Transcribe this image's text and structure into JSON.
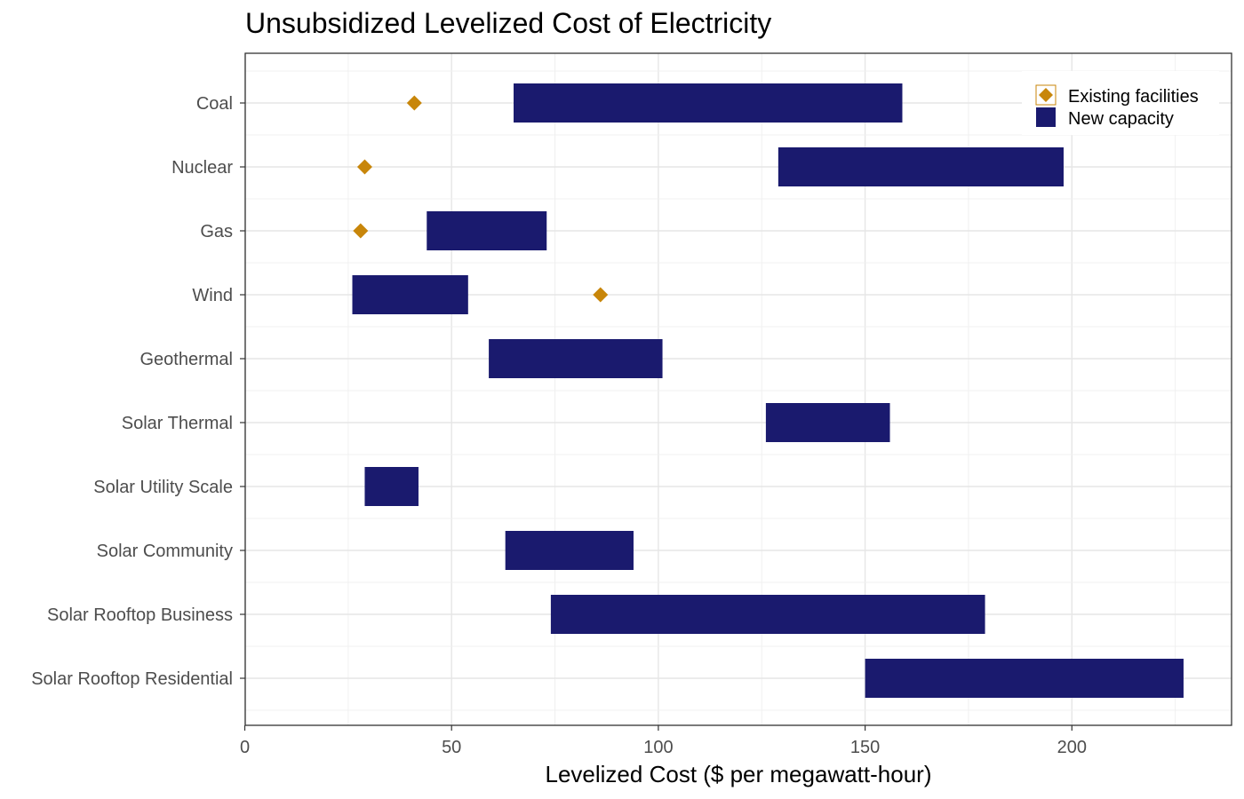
{
  "chart_data": {
    "type": "bar",
    "orientation": "horizontal-range",
    "title": "Unsubsidized Levelized Cost of Electricity",
    "xlabel": "Levelized Cost ($ per megawatt-hour)",
    "ylabel": "",
    "xlim": [
      0,
      238
    ],
    "x_ticks": [
      0,
      50,
      100,
      150,
      200
    ],
    "grid": true,
    "legend_position": "top-right",
    "categories": [
      "Coal",
      "Nuclear",
      "Gas",
      "Wind",
      "Geothermal",
      "Solar Thermal",
      "Solar Utility Scale",
      "Solar Community",
      "Solar Rooftop Business",
      "Solar Rooftop Residential"
    ],
    "series": [
      {
        "name": "New capacity",
        "marker": "bar",
        "color": "#1a1a6e",
        "ranges": [
          [
            65,
            159
          ],
          [
            129,
            198
          ],
          [
            44,
            73
          ],
          [
            26,
            54
          ],
          [
            59,
            101
          ],
          [
            126,
            156
          ],
          [
            29,
            42
          ],
          [
            63,
            94
          ],
          [
            74,
            179
          ],
          [
            150,
            227
          ]
        ]
      },
      {
        "name": "Existing facilities",
        "marker": "diamond",
        "color": "#c8860a",
        "values": [
          41,
          29,
          28,
          null,
          null,
          null,
          null,
          null,
          null,
          null
        ],
        "extra_points": [
          {
            "category": "Wind",
            "value": 86
          }
        ]
      }
    ]
  }
}
